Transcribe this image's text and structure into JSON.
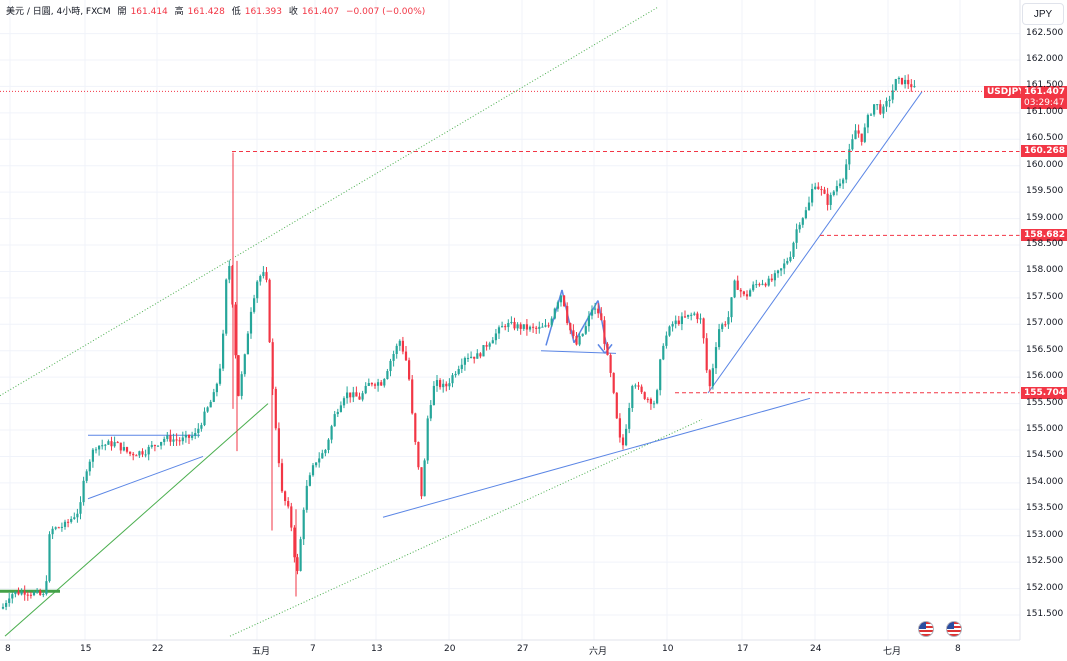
{
  "header": {
    "symbol_desc": "美元 / 日圓, 4小時, FXCM",
    "open_label": "開",
    "open": "161.414",
    "high_label": "高",
    "high": "161.428",
    "low_label": "低",
    "low": "161.393",
    "close_label": "收",
    "close": "161.407",
    "change": "−0.007 (−0.00%)"
  },
  "currency_button": "JPY",
  "price_tags": {
    "symbol": "USDJPY",
    "last_price": "161.407",
    "countdown": "03:29:47",
    "levels": [
      "160.268",
      "158.682",
      "155.704"
    ]
  },
  "colors": {
    "up": "#26a69a",
    "down": "#f23645",
    "trendline": "#5b86e5",
    "channel": "#4caf50",
    "level_line": "#f23645",
    "grid": "#f0f3fa"
  },
  "chart_data": {
    "type": "candlestick",
    "timeframe": "4小時",
    "y_axis": {
      "range": [
        151.1,
        162.9
      ],
      "tick_labels": [
        "162.500",
        "162.000",
        "161.500",
        "161.000",
        "160.500",
        "160.000",
        "159.500",
        "159.000",
        "158.500",
        "158.000",
        "157.500",
        "157.000",
        "156.500",
        "156.000",
        "155.500",
        "155.000",
        "154.500",
        "154.000",
        "153.500",
        "153.000",
        "152.500",
        "152.000",
        "151.500"
      ]
    },
    "x_axis": {
      "tick_labels": [
        "8",
        "15",
        "22",
        "五月",
        "7",
        "13",
        "20",
        "27",
        "六月",
        "10",
        "17",
        "24",
        "七月",
        "8"
      ]
    },
    "horizontal_levels": [
      160.268,
      158.682,
      155.704,
      161.407
    ],
    "price_path": [
      [
        0,
        151.55
      ],
      [
        10,
        151.9
      ],
      [
        25,
        151.95
      ],
      [
        45,
        151.85
      ],
      [
        50,
        153.1
      ],
      [
        65,
        153.2
      ],
      [
        80,
        153.5
      ],
      [
        85,
        154.2
      ],
      [
        95,
        154.7
      ],
      [
        115,
        154.75
      ],
      [
        130,
        154.55
      ],
      [
        145,
        154.6
      ],
      [
        165,
        154.85
      ],
      [
        180,
        154.8
      ],
      [
        195,
        154.9
      ],
      [
        205,
        155.3
      ],
      [
        215,
        155.7
      ],
      [
        222,
        156.4
      ],
      [
        228,
        158.4
      ],
      [
        233,
        157.3
      ],
      [
        238,
        155.6
      ],
      [
        245,
        156.4
      ],
      [
        250,
        157.2
      ],
      [
        258,
        157.9
      ],
      [
        266,
        157.95
      ],
      [
        272,
        155.9
      ],
      [
        277,
        154.8
      ],
      [
        282,
        153.8
      ],
      [
        290,
        153.4
      ],
      [
        297,
        152.2
      ],
      [
        305,
        153.8
      ],
      [
        315,
        154.4
      ],
      [
        325,
        154.6
      ],
      [
        335,
        155.3
      ],
      [
        345,
        155.7
      ],
      [
        360,
        155.6
      ],
      [
        370,
        155.9
      ],
      [
        382,
        155.9
      ],
      [
        390,
        156.3
      ],
      [
        400,
        156.7
      ],
      [
        408,
        156.2
      ],
      [
        413,
        155.1
      ],
      [
        422,
        153.7
      ],
      [
        428,
        155.3
      ],
      [
        435,
        155.9
      ],
      [
        445,
        155.8
      ],
      [
        455,
        156.1
      ],
      [
        465,
        156.4
      ],
      [
        478,
        156.4
      ],
      [
        490,
        156.7
      ],
      [
        505,
        157.0
      ],
      [
        520,
        156.95
      ],
      [
        535,
        156.9
      ],
      [
        548,
        156.95
      ],
      [
        556,
        157.4
      ],
      [
        562,
        157.6
      ],
      [
        568,
        157.0
      ],
      [
        576,
        156.6
      ],
      [
        585,
        156.9
      ],
      [
        592,
        157.3
      ],
      [
        600,
        157.2
      ],
      [
        606,
        156.5
      ],
      [
        612,
        155.9
      ],
      [
        618,
        155.0
      ],
      [
        622,
        154.6
      ],
      [
        628,
        155.3
      ],
      [
        633,
        156.0
      ],
      [
        640,
        155.7
      ],
      [
        648,
        155.6
      ],
      [
        656,
        155.5
      ],
      [
        662,
        156.6
      ],
      [
        672,
        157.0
      ],
      [
        683,
        157.1
      ],
      [
        695,
        157.2
      ],
      [
        702,
        157.05
      ],
      [
        706,
        156.2
      ],
      [
        710,
        155.8
      ],
      [
        718,
        156.9
      ],
      [
        728,
        157.1
      ],
      [
        735,
        157.8
      ],
      [
        745,
        157.5
      ],
      [
        752,
        157.7
      ],
      [
        760,
        157.8
      ],
      [
        770,
        157.8
      ],
      [
        780,
        158.0
      ],
      [
        790,
        158.3
      ],
      [
        798,
        158.9
      ],
      [
        808,
        159.2
      ],
      [
        814,
        159.7
      ],
      [
        822,
        159.5
      ],
      [
        828,
        159.3
      ],
      [
        836,
        159.6
      ],
      [
        843,
        159.8
      ],
      [
        850,
        160.3
      ],
      [
        856,
        160.7
      ],
      [
        862,
        160.5
      ],
      [
        868,
        160.9
      ],
      [
        875,
        161.2
      ],
      [
        882,
        161.0
      ],
      [
        890,
        161.3
      ],
      [
        896,
        161.6
      ],
      [
        903,
        161.6
      ],
      [
        910,
        161.55
      ],
      [
        916,
        161.41
      ]
    ]
  }
}
